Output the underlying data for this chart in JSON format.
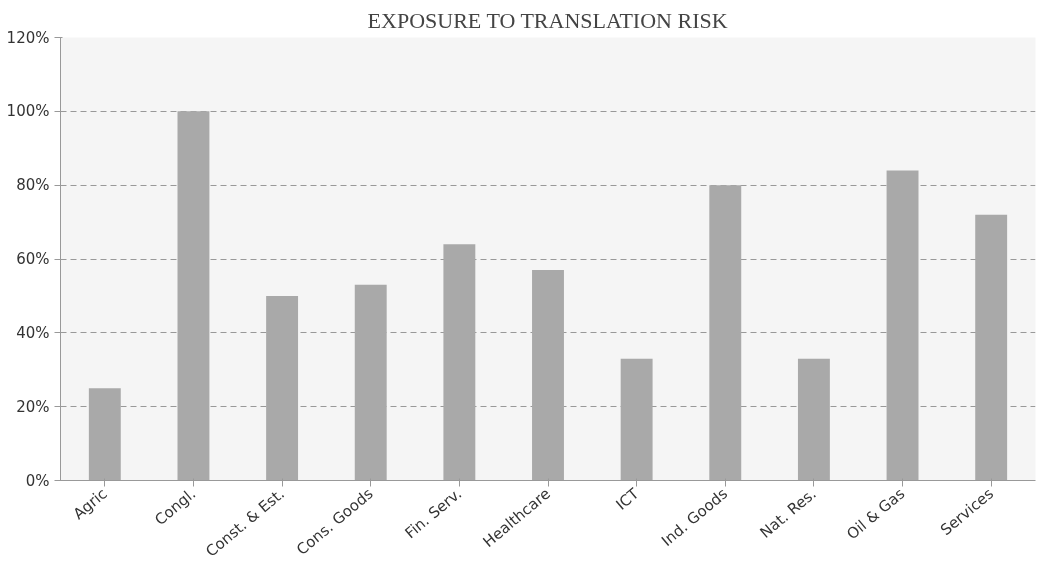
{
  "chart_data": {
    "type": "bar",
    "title": "EXPOSURE TO TRANSLATION RISK",
    "categories": [
      "Agric",
      "Congl.",
      "Const. & Est.",
      "Cons. Goods",
      "Fin. Serv.",
      "Healthcare",
      "ICT",
      "Ind. Goods",
      "Nat. Res.",
      "Oil & Gas",
      "Services"
    ],
    "values": [
      25,
      100,
      50,
      53,
      64,
      57,
      33,
      80,
      33,
      84,
      72
    ],
    "color": "#a9a9a9",
    "ylim": [
      0,
      120
    ],
    "yticks": [
      {
        "value": 0,
        "label": "0%"
      },
      {
        "value": 20,
        "label": "20%"
      },
      {
        "value": 40,
        "label": "40%"
      },
      {
        "value": 60,
        "label": "60%"
      },
      {
        "value": 80,
        "label": "80%"
      },
      {
        "value": 100,
        "label": "100%"
      },
      {
        "value": 120,
        "label": "120%"
      }
    ],
    "grid": "y"
  }
}
